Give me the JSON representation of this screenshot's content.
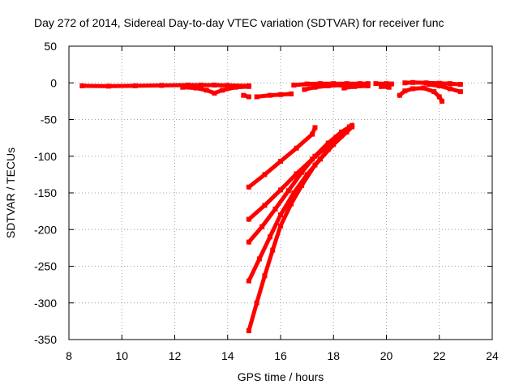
{
  "chart_data": {
    "type": "scatter",
    "title": "Day 272 of 2014, Sidereal Day-to-day VTEC variation (SDTVAR) for receiver func",
    "xlabel": "GPS time / hours",
    "ylabel": "SDTVAR / TECUs",
    "xlim": [
      8,
      24
    ],
    "ylim": [
      -350,
      50
    ],
    "xticks": [
      8,
      10,
      12,
      14,
      16,
      18,
      20,
      22,
      24
    ],
    "yticks": [
      50,
      0,
      -50,
      -100,
      -150,
      -200,
      -250,
      -300,
      -350
    ],
    "grid": true,
    "series_color": "#ff0000",
    "series": [
      {
        "points": [
          [
            8.5,
            -4
          ],
          [
            9.5,
            -4.5
          ],
          [
            10.5,
            -4
          ],
          [
            11.5,
            -3.5
          ],
          [
            12.5,
            -3
          ],
          [
            13.0,
            -3
          ],
          [
            13.5,
            -3
          ],
          [
            14.0,
            -3.5
          ],
          [
            14.8,
            -4
          ]
        ]
      },
      {
        "points": [
          [
            12.3,
            -6
          ],
          [
            12.8,
            -7
          ],
          [
            13.2,
            -10
          ],
          [
            13.5,
            -14
          ],
          [
            13.8,
            -10
          ],
          [
            14.3,
            -6
          ],
          [
            14.8,
            -5
          ]
        ]
      },
      {
        "points": [
          [
            14.6,
            -17
          ],
          [
            14.8,
            -19
          ]
        ]
      },
      {
        "points": [
          [
            15.1,
            -19
          ],
          [
            15.6,
            -17
          ],
          [
            16.0,
            -16
          ],
          [
            16.4,
            -15
          ]
        ]
      },
      {
        "points": [
          [
            16.5,
            -3
          ],
          [
            17.0,
            -1.5
          ],
          [
            17.5,
            -1
          ],
          [
            18.0,
            -1
          ],
          [
            18.5,
            -1
          ],
          [
            19.0,
            -1
          ],
          [
            19.3,
            -1
          ]
        ]
      },
      {
        "points": [
          [
            16.9,
            -9
          ],
          [
            17.3,
            -6
          ],
          [
            17.8,
            -4
          ],
          [
            18.3,
            -3
          ],
          [
            19.0,
            -3
          ],
          [
            19.3,
            -3
          ]
        ]
      },
      {
        "points": [
          [
            18.4,
            -7
          ],
          [
            18.8,
            -5
          ],
          [
            19.3,
            -4
          ]
        ]
      },
      {
        "points": [
          [
            19.6,
            -1
          ],
          [
            20.0,
            -1
          ],
          [
            20.2,
            -1.5
          ]
        ]
      },
      {
        "points": [
          [
            19.8,
            -5
          ],
          [
            20.1,
            -6
          ]
        ]
      },
      {
        "points": [
          [
            20.5,
            -17
          ],
          [
            20.7,
            -11
          ],
          [
            21.0,
            -8
          ],
          [
            21.4,
            -7
          ],
          [
            21.8,
            -12
          ],
          [
            22.0,
            -19
          ],
          [
            22.1,
            -25
          ]
        ]
      },
      {
        "points": [
          [
            20.7,
            0
          ],
          [
            21.0,
            0.5
          ],
          [
            21.5,
            0
          ],
          [
            22.0,
            -0.5
          ],
          [
            22.4,
            -1
          ],
          [
            22.8,
            -2
          ]
        ]
      },
      {
        "points": [
          [
            21.6,
            -2
          ],
          [
            22.0,
            -4
          ],
          [
            22.4,
            -8
          ],
          [
            22.8,
            -12
          ]
        ]
      },
      {
        "points": [
          [
            14.8,
            -142
          ],
          [
            15.4,
            -125
          ],
          [
            16.0,
            -107
          ],
          [
            16.6,
            -89
          ],
          [
            17.2,
            -70
          ],
          [
            17.3,
            -61
          ]
        ]
      },
      {
        "points": [
          [
            14.8,
            -186
          ],
          [
            15.4,
            -167
          ],
          [
            16.0,
            -146
          ],
          [
            16.6,
            -124
          ],
          [
            17.2,
            -104
          ],
          [
            17.8,
            -85
          ],
          [
            18.1,
            -74
          ]
        ]
      },
      {
        "points": [
          [
            14.8,
            -217
          ],
          [
            15.3,
            -196
          ],
          [
            15.8,
            -172
          ],
          [
            16.3,
            -147
          ],
          [
            16.8,
            -122
          ],
          [
            17.3,
            -100
          ],
          [
            17.8,
            -82
          ],
          [
            18.3,
            -67
          ],
          [
            18.7,
            -58
          ]
        ]
      },
      {
        "points": [
          [
            14.8,
            -270
          ],
          [
            15.2,
            -240
          ],
          [
            15.6,
            -210
          ],
          [
            16.0,
            -180
          ],
          [
            16.5,
            -150
          ],
          [
            17.0,
            -125
          ],
          [
            17.5,
            -104
          ],
          [
            18.0,
            -84
          ],
          [
            18.5,
            -67
          ],
          [
            18.7,
            -60
          ]
        ]
      },
      {
        "points": [
          [
            14.8,
            -338
          ],
          [
            15.1,
            -300
          ],
          [
            15.4,
            -263
          ],
          [
            15.7,
            -228
          ],
          [
            16.0,
            -195
          ],
          [
            16.4,
            -165
          ],
          [
            16.8,
            -140
          ],
          [
            17.3,
            -112
          ],
          [
            17.8,
            -91
          ],
          [
            18.3,
            -72
          ],
          [
            18.6,
            -60
          ]
        ]
      }
    ]
  }
}
